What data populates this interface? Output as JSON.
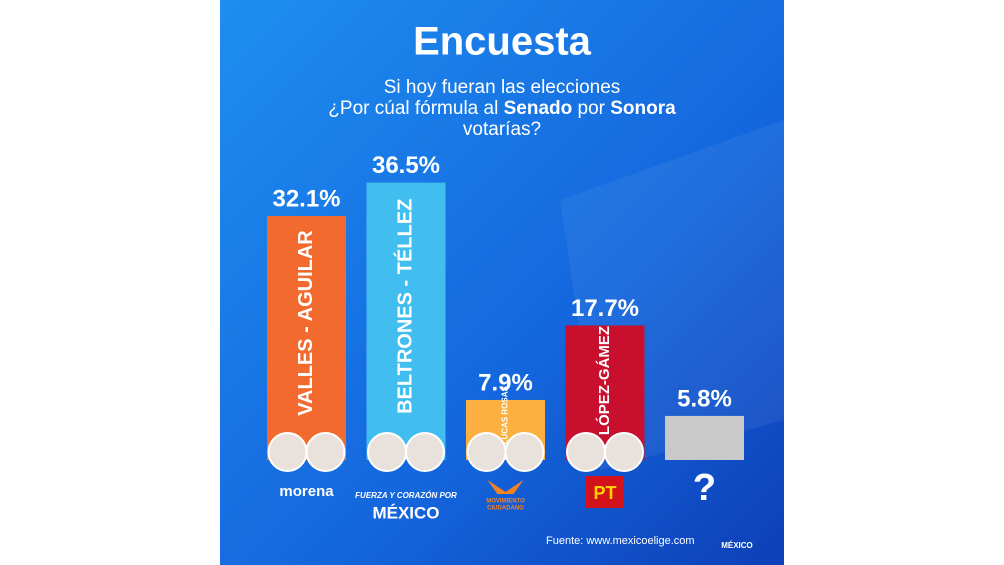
{
  "chart_data": {
    "type": "bar",
    "title": "Encuesta",
    "subtitle": [
      [
        {
          "text": "Si hoy fueran las elecciones"
        }
      ],
      [
        {
          "text": "¿Por cúal fórmula al "
        },
        {
          "text": "Senado",
          "bold": true
        },
        {
          "text": " por "
        },
        {
          "text": "Sonora",
          "bold": true
        }
      ],
      [
        {
          "text": "votarías?"
        }
      ]
    ],
    "categories": [
      "VALLES - AGUILAR",
      "BELTRONES - TÉLLEZ",
      "DE LUCAS ROSAS",
      "LÓPEZ-GÁMEZ",
      null
    ],
    "values": [
      32.1,
      36.5,
      7.9,
      17.7,
      5.8
    ],
    "value_labels": [
      "32.1%",
      "36.5%",
      "7.9%",
      "17.7%",
      "5.8%"
    ],
    "colors": [
      "#f26a2e",
      "#41bdf0",
      "#fbb040",
      "#c8102e",
      "#c9c9c9"
    ],
    "logos": [
      [
        "morena"
      ],
      [
        "FUERZA Y CORAZÓN POR",
        "MÉXICO"
      ],
      [
        "MOVIMIENTO",
        "CIUDADANO"
      ],
      [
        "PT"
      ],
      [
        "?"
      ]
    ],
    "source": "Fuente: www.mexicoelige.com",
    "brand": "MÉXICO"
  }
}
